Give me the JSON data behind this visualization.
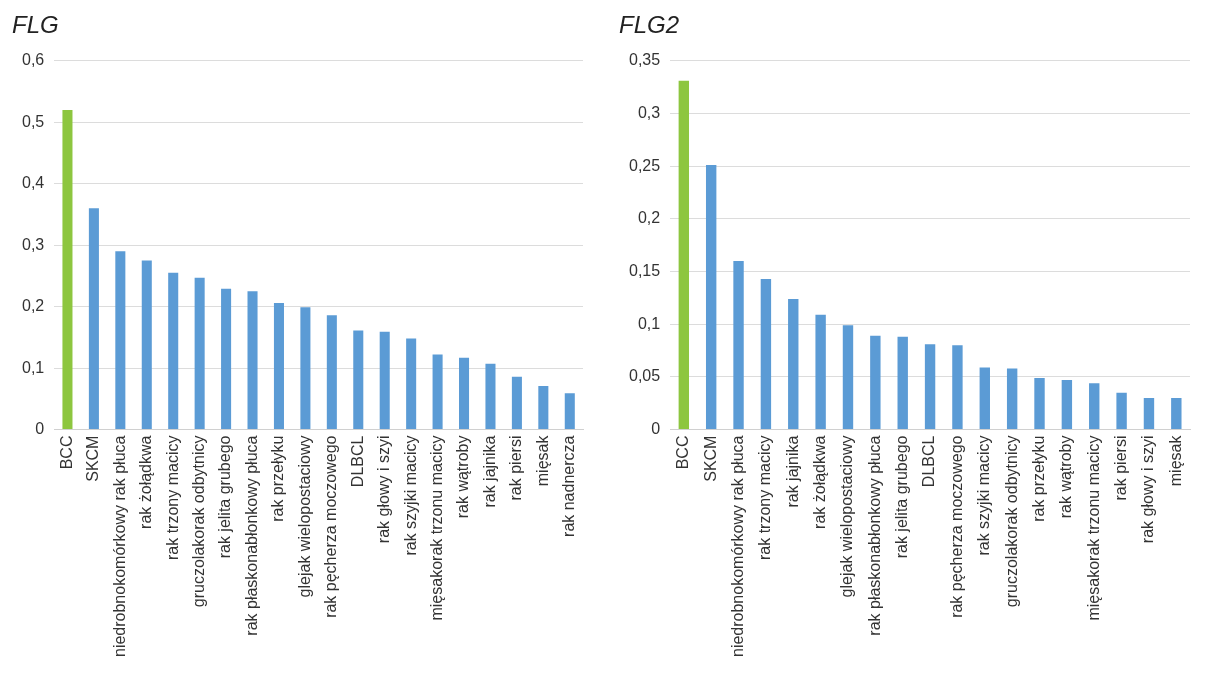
{
  "chart_data": [
    {
      "type": "bar",
      "title": "FLG",
      "categories": [
        "BCC",
        "SKCM",
        "niedrobnokomórkowy rak płuca",
        "rak żołądkwa",
        "rak trzony macicy",
        "gruczolakorak odbytnicy",
        "rak jelita grubego",
        "rak płaskonabłonkowy płuca",
        "rak przełyku",
        "glejak wielopostaciowy",
        "rak pęcherza moczowego",
        "DLBCL",
        "rak głowy i szyi",
        "rak szyjki macicy",
        "mięsakorak trzonu macicy",
        "rak wątroby",
        "rak jajnika",
        "rak piersi",
        "mięsak",
        "rak nadnercza"
      ],
      "values": [
        0.52,
        0.36,
        0.29,
        0.275,
        0.255,
        0.247,
        0.229,
        0.225,
        0.206,
        0.199,
        0.186,
        0.161,
        0.159,
        0.148,
        0.122,
        0.117,
        0.107,
        0.086,
        0.071,
        0.059
      ],
      "colors": [
        "#8dc63f",
        "#5b9bd5",
        "#5b9bd5",
        "#5b9bd5",
        "#5b9bd5",
        "#5b9bd5",
        "#5b9bd5",
        "#5b9bd5",
        "#5b9bd5",
        "#5b9bd5",
        "#5b9bd5",
        "#5b9bd5",
        "#5b9bd5",
        "#5b9bd5",
        "#5b9bd5",
        "#5b9bd5",
        "#5b9bd5",
        "#5b9bd5",
        "#5b9bd5",
        "#5b9bd5"
      ],
      "ylim": [
        0,
        0.6
      ],
      "yticks": [
        0,
        {
          "value": 0.1,
          "label": "0,1"
        },
        {
          "value": 0.2,
          "label": "0,2"
        },
        {
          "value": 0.3,
          "label": "0,3"
        },
        {
          "value": 0.4,
          "label": "0,4"
        },
        {
          "value": 0.5,
          "label": "0,5"
        },
        {
          "value": 0.6,
          "label": "0,6"
        }
      ],
      "grid": "y"
    },
    {
      "type": "bar",
      "title": "FLG2",
      "categories": [
        "BCC",
        "SKCM",
        "niedrobnokomórkowy rak płuca",
        "rak trzony macicy",
        "rak jajnika",
        "rak żołądkwa",
        "glejak wielopostaciowy",
        "rak płaskonabłonkowy płuca",
        "rak jelita grubego",
        "DLBCL",
        "rak pęcherza moczowego",
        "rak szyjki macicy",
        "gruczolakorak odbytnicy",
        "rak przełyku",
        "rak wątroby",
        "mięsakorak trzonu macicy",
        "rak piersi",
        "rak głowy i szyi",
        "mięsak"
      ],
      "values": [
        0.331,
        0.251,
        0.16,
        0.143,
        0.124,
        0.109,
        0.099,
        0.089,
        0.088,
        0.081,
        0.08,
        0.059,
        0.058,
        0.049,
        0.047,
        0.044,
        0.035,
        0.03,
        0.03
      ],
      "colors": [
        "#8dc63f",
        "#5b9bd5",
        "#5b9bd5",
        "#5b9bd5",
        "#5b9bd5",
        "#5b9bd5",
        "#5b9bd5",
        "#5b9bd5",
        "#5b9bd5",
        "#5b9bd5",
        "#5b9bd5",
        "#5b9bd5",
        "#5b9bd5",
        "#5b9bd5",
        "#5b9bd5",
        "#5b9bd5",
        "#5b9bd5",
        "#5b9bd5",
        "#5b9bd5"
      ],
      "ylim": [
        0,
        0.35
      ],
      "yticks": [
        0,
        {
          "value": 0.05,
          "label": "0,05"
        },
        {
          "value": 0.1,
          "label": "0,1"
        },
        {
          "value": 0.15,
          "label": "0,15"
        },
        {
          "value": 0.2,
          "label": "0,2"
        },
        {
          "value": 0.25,
          "label": "0,25"
        },
        {
          "value": 0.3,
          "label": "0,3"
        },
        {
          "value": 0.35,
          "label": "0,35"
        }
      ],
      "grid": "y"
    }
  ]
}
